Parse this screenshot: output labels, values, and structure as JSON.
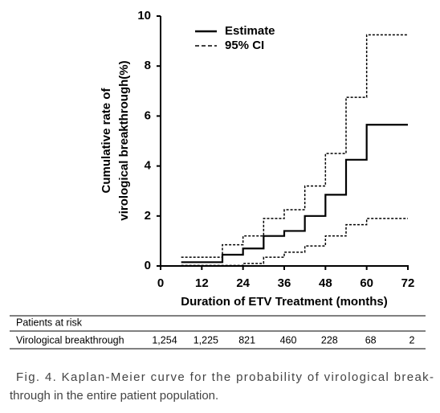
{
  "chart_data": {
    "type": "step",
    "ylabel": [
      "Cumulative rate of",
      "virological breakthrough(%)"
    ],
    "xlabel": "Duration of ETV Treatment (months)",
    "x": [
      6,
      18,
      24,
      30,
      36,
      42,
      48,
      54,
      60,
      72
    ],
    "series": [
      {
        "name": "Estimate",
        "color": "#000000",
        "dash": "solid",
        "values": [
          0.15,
          0.45,
          0.7,
          1.2,
          1.4,
          2.0,
          2.85,
          4.25,
          5.65,
          5.65
        ]
      },
      {
        "name": "95% CI",
        "color": "#000000",
        "dash": "dashed",
        "upper": [
          0.35,
          0.85,
          1.2,
          1.9,
          2.25,
          3.2,
          4.5,
          6.75,
          9.25,
          9.25
        ],
        "lower": [
          0.02,
          0.02,
          0.1,
          0.35,
          0.55,
          0.8,
          1.2,
          1.65,
          1.9,
          1.9
        ]
      }
    ],
    "xlim": [
      0,
      72
    ],
    "xticks": [
      0,
      12,
      24,
      36,
      48,
      60,
      72
    ],
    "ylim": [
      0,
      10
    ],
    "yticks": [
      0,
      2,
      4,
      6,
      8,
      10
    ],
    "legend": "top-left"
  },
  "at_risk": {
    "title": "Patients at risk",
    "label": "Virological breakthrough",
    "values": [
      "1,254",
      "1,225",
      "821",
      "460",
      "228",
      "68",
      "2"
    ]
  },
  "caption": [
    "Fig. 4. Kaplan-Meier curve for the probability of virological break-",
    "through in the entire patient population."
  ]
}
